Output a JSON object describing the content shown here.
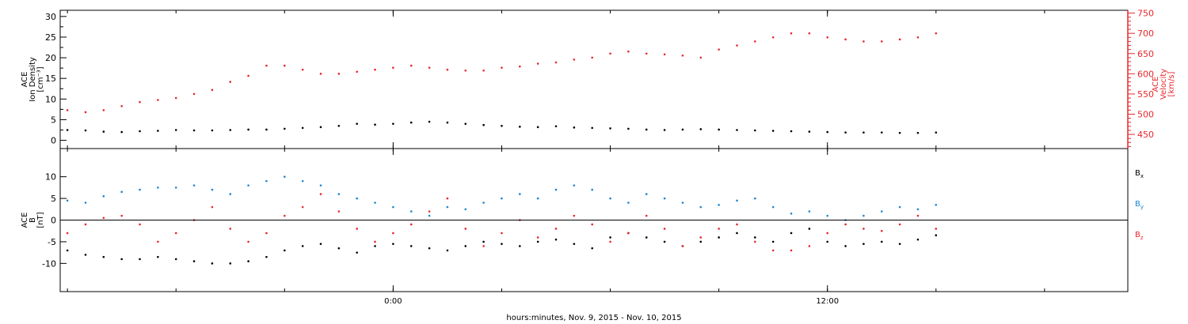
{
  "xlabel": "hours:minutes, Nov.  9, 2015 - Nov. 10, 2015",
  "x_ticks": [
    {
      "label": "0:00",
      "hours": 0
    },
    {
      "label": "12:00",
      "hours": 12
    }
  ],
  "chart_data": [
    {
      "type": "scatter",
      "panel": "plasma",
      "ylabel_left": [
        "ACE",
        "Ion Density",
        "[cm⁻³]"
      ],
      "ylabel_right": [
        "ACE",
        "Velocity",
        "[km/s]"
      ],
      "x_unit": "hours relative to Nov. 10, 2015 00:00",
      "xlim": [
        -9.2,
        20.3
      ],
      "ylim_left": [
        -2,
        31.5
      ],
      "ylim_right": [
        415,
        757
      ],
      "left_ticks": [
        0,
        5,
        10,
        15,
        20,
        25,
        30
      ],
      "right_ticks": [
        450,
        500,
        550,
        600,
        650,
        700,
        750
      ],
      "axis_colors": {
        "left": "#000000",
        "right": "#e8262b"
      },
      "series": [
        {
          "name": "Ion Density",
          "axis": "left",
          "color": "#000000",
          "points": [
            [
              -9.0,
              2.5
            ],
            [
              -8.5,
              2.4
            ],
            [
              -8.0,
              2.1
            ],
            [
              -7.5,
              2.0
            ],
            [
              -7.0,
              2.2
            ],
            [
              -6.5,
              2.3
            ],
            [
              -6.0,
              2.5
            ],
            [
              -5.5,
              2.4
            ],
            [
              -5.0,
              2.4
            ],
            [
              -4.5,
              2.5
            ],
            [
              -4.0,
              2.6
            ],
            [
              -3.5,
              2.6
            ],
            [
              -3.0,
              2.8
            ],
            [
              -2.5,
              3.0
            ],
            [
              -2.0,
              3.2
            ],
            [
              -1.5,
              3.5
            ],
            [
              -1.0,
              4.0
            ],
            [
              -0.5,
              3.8
            ],
            [
              0.0,
              4.0
            ],
            [
              0.5,
              4.3
            ],
            [
              1.0,
              4.5
            ],
            [
              1.5,
              4.3
            ],
            [
              2.0,
              4.0
            ],
            [
              2.5,
              3.7
            ],
            [
              3.0,
              3.5
            ],
            [
              3.5,
              3.3
            ],
            [
              4.0,
              3.2
            ],
            [
              4.5,
              3.4
            ],
            [
              5.0,
              3.1
            ],
            [
              5.5,
              3.0
            ],
            [
              6.0,
              2.9
            ],
            [
              6.5,
              2.8
            ],
            [
              7.0,
              2.6
            ],
            [
              7.5,
              2.5
            ],
            [
              8.0,
              2.6
            ],
            [
              8.5,
              2.7
            ],
            [
              9.0,
              2.6
            ],
            [
              9.5,
              2.5
            ],
            [
              10.0,
              2.4
            ],
            [
              10.5,
              2.3
            ],
            [
              11.0,
              2.2
            ],
            [
              11.5,
              2.1
            ],
            [
              12.0,
              2.0
            ],
            [
              12.5,
              1.9
            ],
            [
              13.0,
              1.9
            ],
            [
              13.5,
              1.9
            ],
            [
              14.0,
              1.8
            ],
            [
              14.5,
              1.8
            ],
            [
              15.0,
              1.9
            ]
          ]
        },
        {
          "name": "Velocity",
          "axis": "right",
          "color": "#e8262b",
          "points": [
            [
              -9.0,
              510
            ],
            [
              -8.5,
              505
            ],
            [
              -8.0,
              510
            ],
            [
              -7.5,
              520
            ],
            [
              -7.0,
              530
            ],
            [
              -6.5,
              535
            ],
            [
              -6.0,
              540
            ],
            [
              -5.5,
              550
            ],
            [
              -5.0,
              560
            ],
            [
              -4.5,
              580
            ],
            [
              -4.0,
              595
            ],
            [
              -3.5,
              620
            ],
            [
              -3.0,
              620
            ],
            [
              -2.5,
              610
            ],
            [
              -2.0,
              600
            ],
            [
              -1.5,
              600
            ],
            [
              -1.0,
              605
            ],
            [
              -0.5,
              610
            ],
            [
              0.0,
              615
            ],
            [
              0.5,
              620
            ],
            [
              1.0,
              615
            ],
            [
              1.5,
              610
            ],
            [
              2.0,
              608
            ],
            [
              2.5,
              608
            ],
            [
              3.0,
              615
            ],
            [
              3.5,
              618
            ],
            [
              4.0,
              625
            ],
            [
              4.5,
              628
            ],
            [
              5.0,
              635
            ],
            [
              5.5,
              640
            ],
            [
              6.0,
              650
            ],
            [
              6.5,
              655
            ],
            [
              7.0,
              650
            ],
            [
              7.5,
              648
            ],
            [
              8.0,
              645
            ],
            [
              8.5,
              640
            ],
            [
              9.0,
              660
            ],
            [
              9.5,
              670
            ],
            [
              10.0,
              680
            ],
            [
              10.5,
              690
            ],
            [
              11.0,
              700
            ],
            [
              11.5,
              700
            ],
            [
              12.0,
              690
            ],
            [
              12.5,
              685
            ],
            [
              13.0,
              680
            ],
            [
              13.5,
              680
            ],
            [
              14.0,
              685
            ],
            [
              14.5,
              690
            ],
            [
              15.0,
              700
            ]
          ]
        }
      ]
    },
    {
      "type": "scatter",
      "panel": "magnetic",
      "ylabel_left": [
        "ACE",
        "B",
        "[nT]"
      ],
      "x_unit": "hours relative to Nov. 10, 2015 00:00",
      "xlim": [
        -9.2,
        20.3
      ],
      "ylim": [
        -16.5,
        16.5
      ],
      "left_ticks": [
        -10,
        -5,
        0,
        5,
        10
      ],
      "zero_line": true,
      "legend_position": "right",
      "series": [
        {
          "name": "Bx",
          "name_main": "B",
          "name_sub": "x",
          "color": "#000000",
          "points": [
            [
              -9.0,
              -7.0
            ],
            [
              -8.5,
              -8.0
            ],
            [
              -8.0,
              -8.5
            ],
            [
              -7.5,
              -9.0
            ],
            [
              -7.0,
              -9.0
            ],
            [
              -6.5,
              -8.5
            ],
            [
              -6.0,
              -9.0
            ],
            [
              -5.5,
              -9.5
            ],
            [
              -5.0,
              -10.0
            ],
            [
              -4.5,
              -10.0
            ],
            [
              -4.0,
              -9.5
            ],
            [
              -3.5,
              -8.5
            ],
            [
              -3.0,
              -7.0
            ],
            [
              -2.5,
              -6.0
            ],
            [
              -2.0,
              -5.5
            ],
            [
              -1.5,
              -6.5
            ],
            [
              -1.0,
              -7.5
            ],
            [
              -0.5,
              -6.0
            ],
            [
              0.0,
              -5.5
            ],
            [
              0.5,
              -6.0
            ],
            [
              1.0,
              -6.5
            ],
            [
              1.5,
              -7.0
            ],
            [
              2.0,
              -6.0
            ],
            [
              2.5,
              -5.0
            ],
            [
              3.0,
              -5.5
            ],
            [
              3.5,
              -6.0
            ],
            [
              4.0,
              -5.0
            ],
            [
              4.5,
              -4.5
            ],
            [
              5.0,
              -5.5
            ],
            [
              5.5,
              -6.5
            ],
            [
              6.0,
              -4.0
            ],
            [
              6.5,
              -3.0
            ],
            [
              7.0,
              -4.0
            ],
            [
              7.5,
              -5.0
            ],
            [
              8.0,
              -6.0
            ],
            [
              8.5,
              -5.0
            ],
            [
              9.0,
              -4.0
            ],
            [
              9.5,
              -3.0
            ],
            [
              10.0,
              -4.0
            ],
            [
              10.5,
              -5.0
            ],
            [
              11.0,
              -3.0
            ],
            [
              11.5,
              -2.0
            ],
            [
              12.0,
              -5.0
            ],
            [
              12.5,
              -6.0
            ],
            [
              13.0,
              -5.5
            ],
            [
              13.5,
              -5.0
            ],
            [
              14.0,
              -5.5
            ],
            [
              14.5,
              -4.5
            ],
            [
              15.0,
              -3.5
            ]
          ]
        },
        {
          "name": "By",
          "name_main": "B",
          "name_sub": "y",
          "color": "#1a86d0",
          "points": [
            [
              -9.0,
              4.5
            ],
            [
              -8.5,
              4.0
            ],
            [
              -8.0,
              5.5
            ],
            [
              -7.5,
              6.5
            ],
            [
              -7.0,
              7.0
            ],
            [
              -6.5,
              7.5
            ],
            [
              -6.0,
              7.5
            ],
            [
              -5.5,
              8.0
            ],
            [
              -5.0,
              7.0
            ],
            [
              -4.5,
              6.0
            ],
            [
              -4.0,
              8.0
            ],
            [
              -3.5,
              9.0
            ],
            [
              -3.0,
              10.0
            ],
            [
              -2.5,
              9.0
            ],
            [
              -2.0,
              8.0
            ],
            [
              -1.5,
              6.0
            ],
            [
              -1.0,
              5.0
            ],
            [
              -0.5,
              4.0
            ],
            [
              0.0,
              3.0
            ],
            [
              0.5,
              2.0
            ],
            [
              1.0,
              1.0
            ],
            [
              1.5,
              3.0
            ],
            [
              2.0,
              2.5
            ],
            [
              2.5,
              4.0
            ],
            [
              3.0,
              5.0
            ],
            [
              3.5,
              6.0
            ],
            [
              4.0,
              5.0
            ],
            [
              4.5,
              7.0
            ],
            [
              5.0,
              8.0
            ],
            [
              5.5,
              7.0
            ],
            [
              6.0,
              5.0
            ],
            [
              6.5,
              4.0
            ],
            [
              7.0,
              6.0
            ],
            [
              7.5,
              5.0
            ],
            [
              8.0,
              4.0
            ],
            [
              8.5,
              3.0
            ],
            [
              9.0,
              3.5
            ],
            [
              9.5,
              4.5
            ],
            [
              10.0,
              5.0
            ],
            [
              10.5,
              3.0
            ],
            [
              11.0,
              1.5
            ],
            [
              11.5,
              2.0
            ],
            [
              12.0,
              1.0
            ],
            [
              12.5,
              0.0
            ],
            [
              13.0,
              1.0
            ],
            [
              13.5,
              2.0
            ],
            [
              14.0,
              3.0
            ],
            [
              14.5,
              2.5
            ],
            [
              15.0,
              3.5
            ]
          ]
        },
        {
          "name": "Bz",
          "name_main": "B",
          "name_sub": "z",
          "color": "#e8262b",
          "points": [
            [
              -9.0,
              -3.0
            ],
            [
              -8.5,
              -1.0
            ],
            [
              -8.0,
              0.5
            ],
            [
              -7.5,
              1.0
            ],
            [
              -7.0,
              -1.0
            ],
            [
              -6.5,
              -5.0
            ],
            [
              -6.0,
              -3.0
            ],
            [
              -5.5,
              0.0
            ],
            [
              -5.0,
              3.0
            ],
            [
              -4.5,
              -2.0
            ],
            [
              -4.0,
              -5.0
            ],
            [
              -3.5,
              -3.0
            ],
            [
              -3.0,
              1.0
            ],
            [
              -2.5,
              3.0
            ],
            [
              -2.0,
              6.0
            ],
            [
              -1.5,
              2.0
            ],
            [
              -1.0,
              -2.0
            ],
            [
              -0.5,
              -5.0
            ],
            [
              0.0,
              -3.0
            ],
            [
              0.5,
              -1.0
            ],
            [
              1.0,
              2.0
            ],
            [
              1.5,
              5.0
            ],
            [
              2.0,
              -2.0
            ],
            [
              2.5,
              -6.0
            ],
            [
              3.0,
              -3.0
            ],
            [
              3.5,
              0.0
            ],
            [
              4.0,
              -4.0
            ],
            [
              4.5,
              -2.0
            ],
            [
              5.0,
              1.0
            ],
            [
              5.5,
              -1.0
            ],
            [
              6.0,
              -5.0
            ],
            [
              6.5,
              -3.0
            ],
            [
              7.0,
              1.0
            ],
            [
              7.5,
              -2.0
            ],
            [
              8.0,
              -6.0
            ],
            [
              8.5,
              -4.0
            ],
            [
              9.0,
              -2.0
            ],
            [
              9.5,
              -1.0
            ],
            [
              10.0,
              -5.0
            ],
            [
              10.5,
              -7.0
            ],
            [
              11.0,
              -7.0
            ],
            [
              11.5,
              -6.0
            ],
            [
              12.0,
              -3.0
            ],
            [
              12.5,
              -1.0
            ],
            [
              13.0,
              -2.0
            ],
            [
              13.5,
              -2.5
            ],
            [
              14.0,
              -1.0
            ],
            [
              14.5,
              1.0
            ],
            [
              15.0,
              -2.0
            ]
          ]
        }
      ]
    }
  ]
}
